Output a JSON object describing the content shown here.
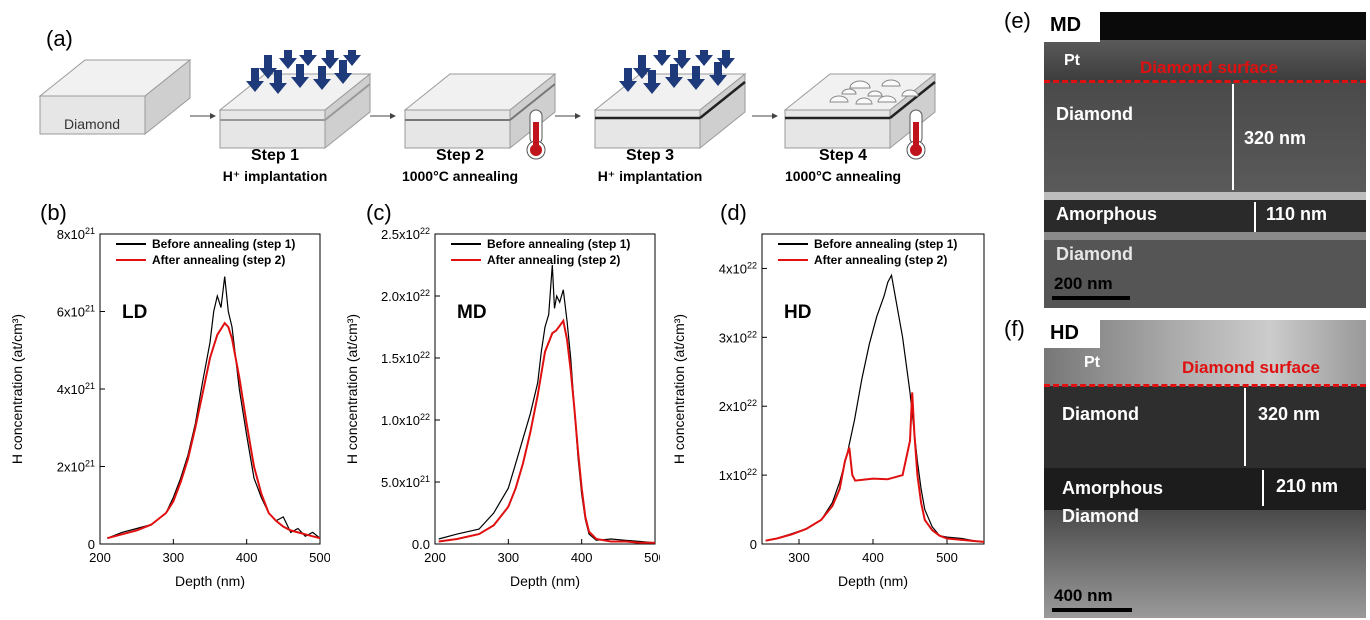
{
  "panels": {
    "a": "(a)",
    "b": "(b)",
    "c": "(c)",
    "d": "(d)",
    "e": "(e)",
    "f": "(f)"
  },
  "schematic": {
    "sample_label": "Diamond",
    "steps": [
      {
        "title": "Step 1",
        "sub": "H⁺ implantation"
      },
      {
        "title": "Step 2",
        "sub": "1000°C annealing"
      },
      {
        "title": "Step 3",
        "sub": "H⁺ implantation"
      },
      {
        "title": "Step 4",
        "sub": "1000°C  annealing"
      }
    ],
    "colors": {
      "arrow": "#1f3a7a",
      "thermometer": "#c0141c",
      "box_face": "#e8e8e8"
    }
  },
  "tem": {
    "e": {
      "sample": "MD",
      "pt": "Pt",
      "surface": "Diamond surface",
      "layer1": "Diamond",
      "thick1": "320 nm",
      "amorphous": "Amorphous",
      "thick2": "110 nm",
      "layer3": "Diamond",
      "scale": "200 nm"
    },
    "f": {
      "sample": "HD",
      "pt": "Pt",
      "surface": "Diamond surface",
      "layer1": "Diamond",
      "thick1": "320 nm",
      "amorphous": "Amorphous",
      "thick2": "210 nm",
      "layer3": "Diamond",
      "scale": "400 nm"
    },
    "colors": {
      "surface_line": "#e01010"
    }
  },
  "chart_data": [
    {
      "type": "line",
      "label": "LD",
      "xlabel": "Depth (nm)",
      "ylabel": "H concentration (at/cm³)",
      "xlim": [
        200,
        500
      ],
      "ylim": [
        0,
        8e+21
      ],
      "xticks": [
        "200",
        "300",
        "400",
        "500"
      ],
      "yticks": [
        "0",
        "2x10^21",
        "4x10^21",
        "6x10^21",
        "8x10^21"
      ],
      "series": [
        {
          "name": "Before annealing (step 1)",
          "color": "#000000",
          "x": [
            210,
            230,
            250,
            270,
            290,
            300,
            310,
            320,
            330,
            340,
            350,
            355,
            360,
            365,
            370,
            375,
            380,
            385,
            390,
            400,
            410,
            420,
            430,
            440,
            450,
            460,
            470,
            480,
            490,
            500
          ],
          "y": [
            1.5e+20,
            3e+20,
            4e+20,
            5e+20,
            8e+20,
            1.2e+21,
            1.7e+21,
            2.3e+21,
            3.1e+21,
            4.2e+21,
            5.2e+21,
            6e+21,
            6.4e+21,
            6.1e+21,
            6.9e+21,
            6e+21,
            5.6e+21,
            4.8e+21,
            4e+21,
            2.8e+21,
            1.7e+21,
            1.2e+21,
            8e+20,
            6e+20,
            7e+20,
            3e+20,
            4e+20,
            2e+20,
            3e+20,
            1.5e+20
          ]
        },
        {
          "name": "After annealing (step 2)",
          "color": "#e01010",
          "x": [
            210,
            230,
            250,
            270,
            290,
            300,
            310,
            320,
            330,
            340,
            350,
            360,
            370,
            375,
            380,
            390,
            400,
            410,
            420,
            430,
            440,
            450,
            460,
            470,
            480,
            490,
            500
          ],
          "y": [
            1.5e+20,
            2.5e+20,
            3.5e+20,
            5e+20,
            8e+20,
            1.1e+21,
            1.6e+21,
            2.2e+21,
            3e+21,
            3.9e+21,
            4.8e+21,
            5.4e+21,
            5.7e+21,
            5.6e+21,
            5.3e+21,
            4.3e+21,
            3.1e+21,
            2e+21,
            1.3e+21,
            8e+20,
            6e+20,
            4.5e+20,
            3.5e+20,
            3e+20,
            2.5e+20,
            2e+20,
            1.5e+20
          ]
        }
      ]
    },
    {
      "type": "line",
      "label": "MD",
      "xlabel": "Depth (nm)",
      "ylabel": "H concentration (at/cm³)",
      "xlim": [
        200,
        500
      ],
      "ylim": [
        0,
        2.5e+22
      ],
      "xticks": [
        "200",
        "300",
        "400",
        "500"
      ],
      "yticks": [
        "0.0",
        "5.0x10^21",
        "1.0x10^22",
        "1.5x10^22",
        "2.0x10^22",
        "2.5x10^22"
      ],
      "series": [
        {
          "name": "Before annealing (step 1)",
          "color": "#000000",
          "x": [
            205,
            230,
            260,
            280,
            300,
            310,
            320,
            330,
            340,
            345,
            350,
            355,
            360,
            363,
            366,
            370,
            375,
            380,
            385,
            390,
            395,
            400,
            405,
            410,
            420,
            440,
            460,
            480,
            500
          ],
          "y": [
            4e+20,
            8e+20,
            1.2e+21,
            2.5e+21,
            4.5e+21,
            6.5e+21,
            8.5e+21,
            1.05e+22,
            1.3e+22,
            1.55e+22,
            1.75e+22,
            1.85e+22,
            2.25e+22,
            1.9e+22,
            2e+22,
            1.95e+22,
            2.05e+22,
            1.8e+22,
            1.5e+22,
            1.1e+22,
            7e+21,
            4e+21,
            2e+21,
            8e+20,
            3e+20,
            4e+20,
            3e+20,
            2e+20,
            1e+20
          ]
        },
        {
          "name": "After annealing (step 2)",
          "color": "#e01010",
          "x": [
            205,
            230,
            260,
            280,
            300,
            310,
            320,
            330,
            340,
            350,
            360,
            365,
            370,
            375,
            380,
            385,
            390,
            395,
            400,
            405,
            410,
            420,
            440,
            460,
            480,
            500
          ],
          "y": [
            2e+20,
            4e+20,
            8e+20,
            1.5e+21,
            3e+21,
            4.5e+21,
            6.5e+21,
            9e+21,
            1.2e+22,
            1.55e+22,
            1.7e+22,
            1.72e+22,
            1.76e+22,
            1.8e+22,
            1.65e+22,
            1.4e+22,
            1.1e+22,
            7.5e+21,
            4.5e+21,
            2.2e+21,
            1e+21,
            4e+20,
            2e+20,
            2e+20,
            1e+20,
            1e+20
          ]
        }
      ]
    },
    {
      "type": "line",
      "label": "HD",
      "xlabel": "Depth (nm)",
      "ylabel": "H concentration (at/cm³)",
      "xlim": [
        250,
        550
      ],
      "ylim": [
        0,
        4.5e+22
      ],
      "xticks": [
        "300",
        "400",
        "500"
      ],
      "yticks": [
        "0",
        "1x10^22",
        "2x10^22",
        "3x10^22",
        "4x10^22"
      ],
      "series": [
        {
          "name": "Before annealing (step 1)",
          "color": "#000000",
          "x": [
            255,
            270,
            290,
            310,
            330,
            345,
            355,
            365,
            375,
            385,
            395,
            405,
            415,
            420,
            425,
            430,
            435,
            440,
            445,
            450,
            455,
            460,
            465,
            470,
            480,
            490,
            500,
            520,
            540,
            550
          ],
          "y": [
            5e+20,
            8e+20,
            1.5e+21,
            2.2e+21,
            3.5e+21,
            6e+21,
            9e+21,
            1.3e+22,
            1.8e+22,
            2.4e+22,
            2.9e+22,
            3.3e+22,
            3.6e+22,
            3.8e+22,
            3.9e+22,
            3.6e+22,
            3.3e+22,
            3e+22,
            2.6e+22,
            2.2e+22,
            1.7e+22,
            1.2e+22,
            8e+21,
            5e+21,
            2.5e+21,
            1.2e+21,
            1e+21,
            8e+20,
            4e+20,
            3e+20
          ]
        },
        {
          "name": "After annealing (step 2)",
          "color": "#e01010",
          "x": [
            255,
            270,
            290,
            310,
            330,
            345,
            355,
            362,
            368,
            372,
            376,
            385,
            400,
            420,
            440,
            450,
            453,
            456,
            460,
            465,
            470,
            480,
            490,
            500,
            520,
            540,
            550
          ],
          "y": [
            5e+20,
            8e+20,
            1.4e+21,
            2.2e+21,
            3.5e+21,
            5.5e+21,
            8e+21,
            1.2e+22,
            1.4e+22,
            1e+22,
            9.2e+21,
            9.3e+21,
            9.5e+21,
            9.4e+21,
            1e+22,
            1.5e+22,
            2.2e+22,
            1.6e+22,
            1e+22,
            6e+21,
            3.5e+21,
            2e+21,
            1.2e+21,
            8e+20,
            6e+20,
            4e+20,
            3e+20
          ]
        }
      ]
    }
  ]
}
